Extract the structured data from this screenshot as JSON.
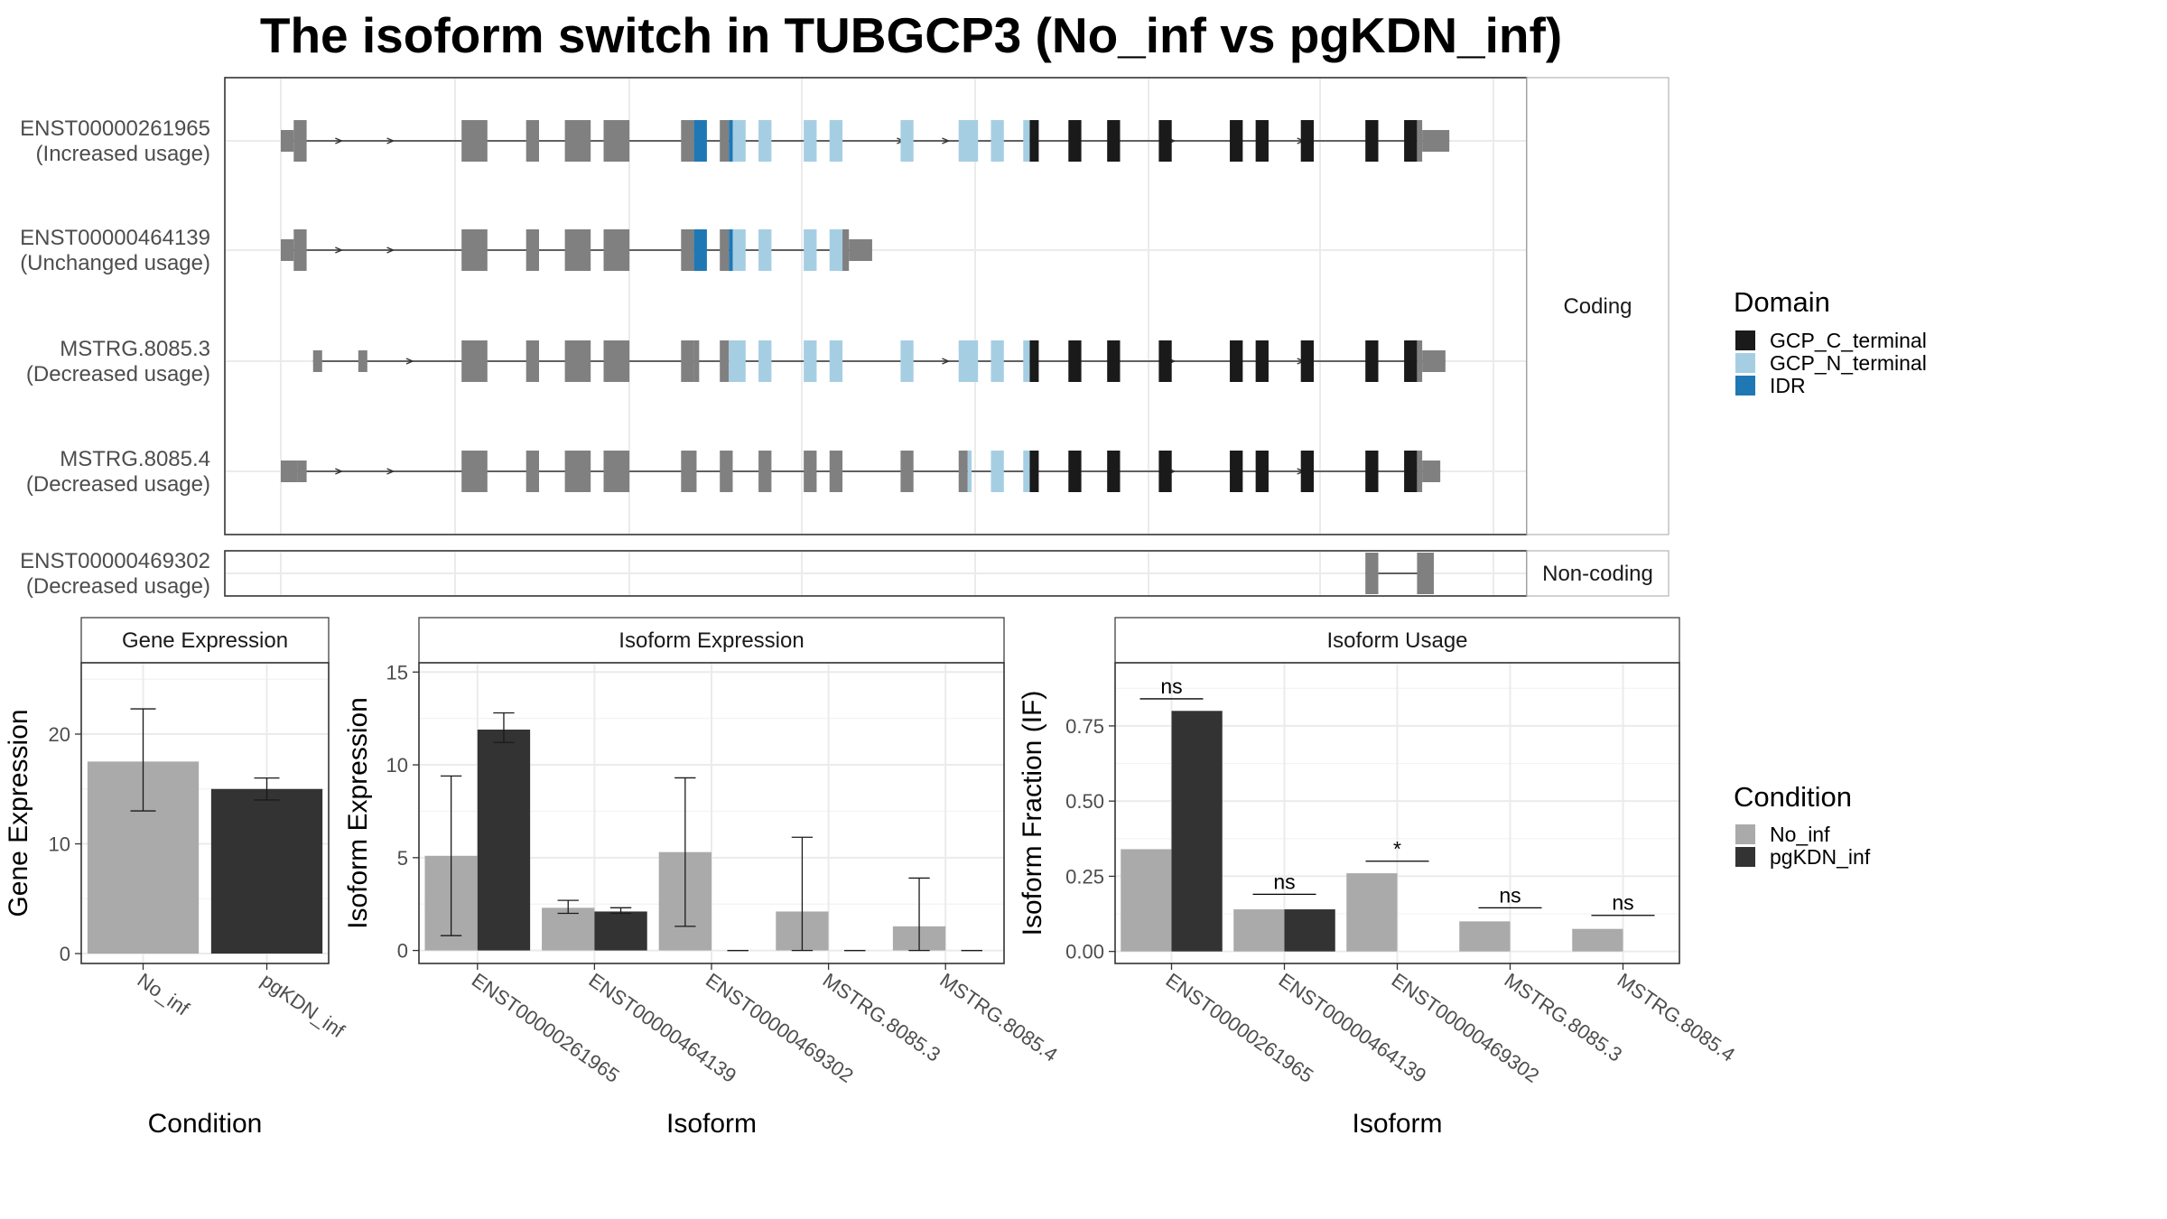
{
  "title": "The isoform switch in TUBGCP3 (No_inf vs pgKDN_inf)",
  "colors": {
    "exon": "#808080",
    "GCP_C_terminal": "#1a1a1a",
    "GCP_N_terminal": "#a6cee3",
    "IDR": "#1f78b4",
    "No_inf": "#aaaaaa",
    "pgKDN_inf": "#333333",
    "panel_border": "#333333",
    "strip_bg": "#ffffff",
    "grid": "#ebebeb"
  },
  "structure": {
    "coding_label": "Coding",
    "noncoding_label": "Non-coding",
    "transcripts": [
      {
        "id": "ENST00000261965",
        "usage": "(Increased usage)",
        "group": "coding",
        "exons": [
          [
            0,
            1,
            "u"
          ],
          [
            1,
            2,
            "c"
          ],
          [
            14,
            16,
            "c"
          ],
          [
            19,
            20,
            "c"
          ],
          [
            22,
            24,
            "c"
          ],
          [
            25,
            27,
            "c"
          ],
          [
            31,
            32,
            "c"
          ],
          [
            32,
            33,
            "i"
          ],
          [
            34,
            34.7,
            "c"
          ],
          [
            34.7,
            35,
            "i"
          ],
          [
            35,
            36,
            "n"
          ],
          [
            37,
            38,
            "n"
          ],
          [
            40.5,
            41.5,
            "n"
          ],
          [
            42.5,
            43.5,
            "n"
          ],
          [
            48,
            49,
            "n"
          ],
          [
            52.5,
            54,
            "n"
          ],
          [
            55,
            56,
            "n"
          ],
          [
            57.5,
            58,
            "n"
          ],
          [
            58,
            58.7,
            "t"
          ],
          [
            61,
            62,
            "t"
          ],
          [
            64,
            65,
            "t"
          ],
          [
            68,
            69,
            "t"
          ],
          [
            73.5,
            74.5,
            "t"
          ],
          [
            75.5,
            76.5,
            "t"
          ],
          [
            79,
            80,
            "t"
          ],
          [
            84,
            85,
            "t"
          ],
          [
            87,
            88,
            "t"
          ],
          [
            88,
            88.4,
            "c"
          ],
          [
            88.4,
            90.5,
            "u"
          ]
        ],
        "arrows": [
          4.5,
          8.5,
          48,
          51.5,
          69,
          79
        ]
      },
      {
        "id": "ENST00000464139",
        "usage": "(Unchanged usage)",
        "group": "coding",
        "exons": [
          [
            0,
            1,
            "u"
          ],
          [
            1,
            2,
            "c"
          ],
          [
            14,
            16,
            "c"
          ],
          [
            19,
            20,
            "c"
          ],
          [
            22,
            24,
            "c"
          ],
          [
            25,
            27,
            "c"
          ],
          [
            31,
            32,
            "c"
          ],
          [
            32,
            33,
            "i"
          ],
          [
            34,
            34.7,
            "c"
          ],
          [
            34.7,
            35,
            "i"
          ],
          [
            35,
            36,
            "n"
          ],
          [
            37,
            38,
            "n"
          ],
          [
            40.5,
            41.5,
            "n"
          ],
          [
            42.5,
            43.5,
            "n"
          ],
          [
            43.5,
            44,
            "c"
          ],
          [
            44,
            45.8,
            "u"
          ]
        ],
        "arrows": [
          4.5,
          8.5
        ]
      },
      {
        "id": "MSTRG.8085.3",
        "usage": "(Decreased usage)",
        "group": "coding",
        "exons": [
          [
            2.5,
            3.2,
            "u"
          ],
          [
            6,
            6.7,
            "u"
          ],
          [
            14,
            16,
            "c"
          ],
          [
            19,
            20,
            "c"
          ],
          [
            22,
            24,
            "c"
          ],
          [
            25,
            27,
            "c"
          ],
          [
            31,
            32,
            "c"
          ],
          [
            32,
            32.4,
            "c"
          ],
          [
            34,
            34.7,
            "c"
          ],
          [
            34.7,
            35,
            "n"
          ],
          [
            35,
            36,
            "n"
          ],
          [
            37,
            38,
            "n"
          ],
          [
            40.5,
            41.5,
            "n"
          ],
          [
            42.5,
            43.5,
            "n"
          ],
          [
            48,
            49,
            "n"
          ],
          [
            52.5,
            54,
            "n"
          ],
          [
            55,
            56,
            "n"
          ],
          [
            57.5,
            58,
            "n"
          ],
          [
            58,
            58.7,
            "t"
          ],
          [
            61,
            62,
            "t"
          ],
          [
            64,
            65,
            "t"
          ],
          [
            68,
            69,
            "t"
          ],
          [
            73.5,
            74.5,
            "t"
          ],
          [
            75.5,
            76.5,
            "t"
          ],
          [
            79,
            80,
            "t"
          ],
          [
            84,
            85,
            "t"
          ],
          [
            87,
            88,
            "t"
          ],
          [
            88,
            88.4,
            "c"
          ],
          [
            88.4,
            90.2,
            "u"
          ]
        ],
        "arrows": [
          10,
          51.5,
          69,
          79
        ]
      },
      {
        "id": "MSTRG.8085.4",
        "usage": "(Decreased usage)",
        "group": "coding",
        "exons": [
          [
            0,
            1.3,
            "u"
          ],
          [
            1.3,
            2,
            "u"
          ],
          [
            14,
            16,
            "c"
          ],
          [
            19,
            20,
            "c"
          ],
          [
            22,
            24,
            "c"
          ],
          [
            25,
            27,
            "c"
          ],
          [
            31,
            32.2,
            "c"
          ],
          [
            34,
            35,
            "c"
          ],
          [
            37,
            38,
            "c"
          ],
          [
            40.5,
            41.5,
            "c"
          ],
          [
            42.5,
            43.5,
            "c"
          ],
          [
            48,
            49,
            "c"
          ],
          [
            52.5,
            53.2,
            "c"
          ],
          [
            53.2,
            53.5,
            "n"
          ],
          [
            55,
            56,
            "n"
          ],
          [
            57.5,
            58,
            "n"
          ],
          [
            58,
            58.7,
            "t"
          ],
          [
            61,
            62,
            "t"
          ],
          [
            64,
            65,
            "t"
          ],
          [
            68,
            69,
            "t"
          ],
          [
            73.5,
            74.5,
            "t"
          ],
          [
            75.5,
            76.5,
            "t"
          ],
          [
            79,
            80,
            "t"
          ],
          [
            84,
            85,
            "t"
          ],
          [
            87,
            88,
            "t"
          ],
          [
            88,
            88.4,
            "c"
          ],
          [
            88.4,
            89.8,
            "u"
          ]
        ],
        "arrows": [
          4.5,
          8.5,
          69,
          79
        ]
      },
      {
        "id": "ENST00000469302",
        "usage": "(Decreased usage)",
        "group": "noncoding",
        "exons": [
          [
            84,
            85,
            "c"
          ],
          [
            88,
            89.3,
            "c"
          ]
        ],
        "arrows": []
      }
    ]
  },
  "legend_domain": {
    "title": "Domain",
    "items": [
      {
        "label": "GCP_C_terminal",
        "key": "GCP_C_terminal"
      },
      {
        "label": "GCP_N_terminal",
        "key": "GCP_N_terminal"
      },
      {
        "label": "IDR",
        "key": "IDR"
      }
    ]
  },
  "legend_condition": {
    "title": "Condition",
    "items": [
      {
        "label": "No_inf",
        "key": "No_inf"
      },
      {
        "label": "pgKDN_inf",
        "key": "pgKDN_inf"
      }
    ]
  },
  "chart_data": [
    {
      "type": "bar",
      "title": "Gene Expression",
      "xlabel": "Condition",
      "ylabel": "Gene Expression",
      "categories": [
        "No_inf",
        "pgKDN_inf"
      ],
      "series": [
        {
          "name": "No_inf",
          "values": [
            17.5,
            null
          ],
          "err_low": [
            13.0,
            null
          ],
          "err_high": [
            22.3,
            null
          ]
        },
        {
          "name": "pgKDN_inf",
          "values": [
            null,
            15.0
          ],
          "err_low": [
            null,
            14.0
          ],
          "err_high": [
            null,
            16.0
          ]
        }
      ],
      "ylim": [
        -0.9,
        26.5
      ],
      "yticks": [
        0,
        10,
        20
      ]
    },
    {
      "type": "bar",
      "title": "Isoform Expression",
      "xlabel": "Isoform",
      "ylabel": "Isoform Expression",
      "categories": [
        "ENST00000261965",
        "ENST00000464139",
        "ENST00000469302",
        "MSTRG.8085.3",
        "MSTRG.8085.4"
      ],
      "series": [
        {
          "name": "No_inf",
          "values": [
            5.1,
            2.3,
            5.3,
            2.1,
            1.3
          ],
          "err_low": [
            0.8,
            2.0,
            1.3,
            0.0,
            0.0
          ],
          "err_high": [
            9.4,
            2.7,
            9.3,
            6.1,
            3.9
          ]
        },
        {
          "name": "pgKDN_inf",
          "values": [
            11.9,
            2.1,
            0.0,
            0.0,
            0.0
          ],
          "err_low": [
            11.2,
            2.0,
            0.0,
            0.0,
            0.0
          ],
          "err_high": [
            12.8,
            2.3,
            0.0,
            0.0,
            0.0
          ]
        }
      ],
      "ylim": [
        -0.7,
        15.5
      ],
      "yticks": [
        0,
        5,
        10,
        15
      ]
    },
    {
      "type": "bar",
      "title": "Isoform Usage",
      "xlabel": "Isoform",
      "ylabel": "Isoform Fraction (IF)",
      "categories": [
        "ENST00000261965",
        "ENST00000464139",
        "ENST00000469302",
        "MSTRG.8085.3",
        "MSTRG.8085.4"
      ],
      "series": [
        {
          "name": "No_inf",
          "values": [
            0.34,
            0.14,
            0.26,
            0.1,
            0.075
          ]
        },
        {
          "name": "pgKDN_inf",
          "values": [
            0.8,
            0.14,
            0.0,
            0.0,
            0.0
          ]
        }
      ],
      "significance": [
        {
          "label": "ns",
          "y": 0.84
        },
        {
          "label": "ns",
          "y": 0.19
        },
        {
          "label": "*",
          "y": 0.3
        },
        {
          "label": "ns",
          "y": 0.145
        },
        {
          "label": "ns",
          "y": 0.12
        }
      ],
      "ylim": [
        -0.04,
        0.96
      ],
      "yticks": [
        0.0,
        0.25,
        0.5,
        0.75
      ],
      "ytick_labels": [
        "0.00",
        "0.25",
        "0.50",
        "0.75"
      ]
    }
  ]
}
